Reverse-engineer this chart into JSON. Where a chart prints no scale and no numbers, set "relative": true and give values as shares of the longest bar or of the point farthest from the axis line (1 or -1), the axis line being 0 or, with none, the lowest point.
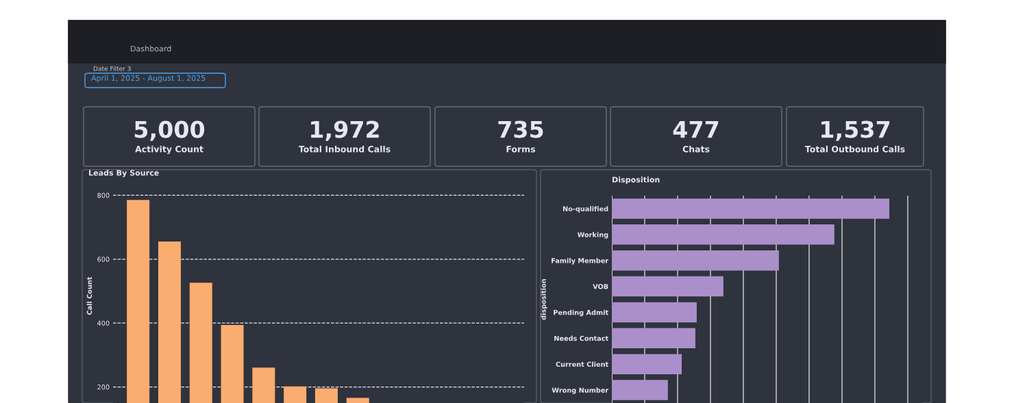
{
  "chart_data": [
    {
      "type": "other",
      "categories": [
        "Activity Count",
        "Total Inbound Calls",
        "Forms",
        "Chats",
        "Total Outbound Calls"
      ],
      "value_labels": [
        "5,000",
        "1,972",
        "735",
        "477",
        "1,537"
      ],
      "annotations": [
        "Dashboard",
        "Date Filter 3",
        "April 1, 2025 - August 1, 2025"
      ]
    },
    {
      "type": "bar",
      "title": "Leads By Source",
      "ylabel": "Call Count",
      "categories": [
        null,
        null,
        null,
        null,
        null,
        null,
        null,
        null
      ],
      "values": [
        785,
        655,
        526,
        394,
        261,
        202,
        196,
        166
      ],
      "color": "#fbad70",
      "ylim": [
        150,
        820
      ],
      "yticks": [
        200,
        400,
        600,
        800
      ],
      "grid": "y",
      "tick_labels": "y"
    },
    {
      "type": "bar",
      "orientation": "horizontal",
      "relative": true,
      "title": "Disposition",
      "ylabel": "disposition",
      "categories": [
        "No-qualified",
        "Working",
        "Family Member",
        "VOB",
        "Pending Admit",
        "Needs Contact",
        "Current Client",
        "Wrong Number"
      ],
      "values": [
        1,
        0.802,
        0.602,
        0.402,
        0.306,
        0.301,
        0.252,
        0.202
      ],
      "color": "#ab8fca",
      "grid": "x",
      "tick_labels": "y"
    }
  ]
}
